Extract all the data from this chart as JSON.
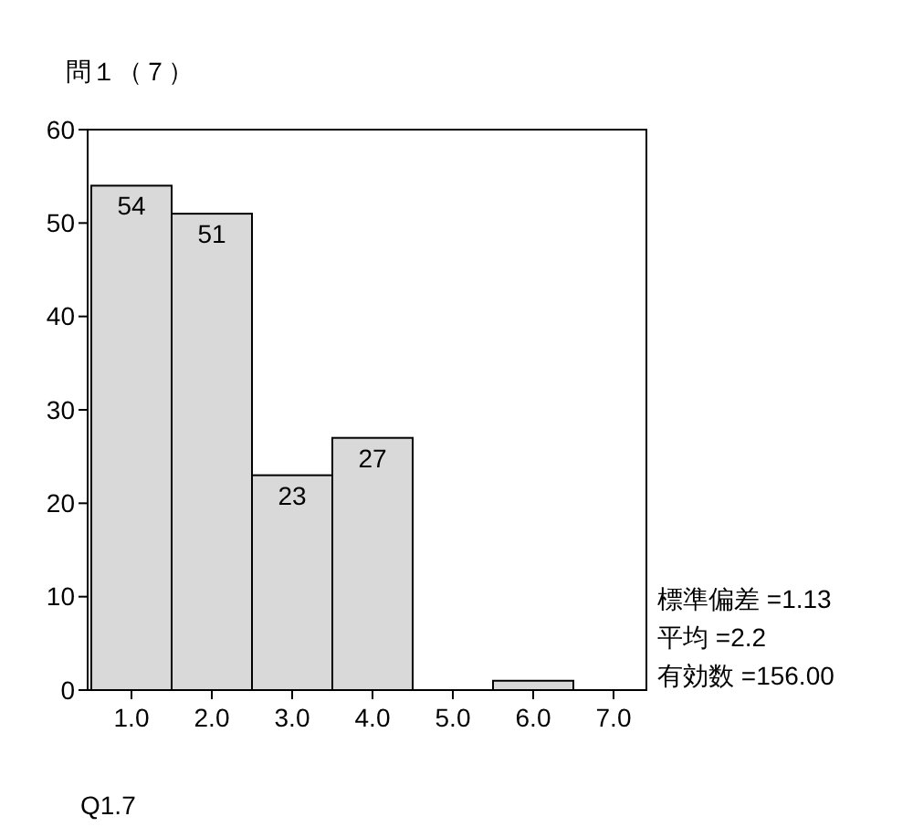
{
  "chart_data": {
    "type": "bar",
    "title": "問１（７）",
    "xlabel": "Q1.7",
    "categories": [
      "1.0",
      "2.0",
      "3.0",
      "4.0",
      "5.0",
      "6.0",
      "7.0"
    ],
    "values": [
      54,
      51,
      23,
      27,
      0,
      1,
      0
    ],
    "value_labels": [
      "54",
      "51",
      "23",
      "27",
      null,
      null,
      null
    ],
    "color": "#d9d9d9",
    "ylim": [
      0,
      60
    ],
    "yticks": [
      0,
      10,
      20,
      30,
      40,
      50,
      60
    ],
    "grid": false,
    "annotations": [
      "標準偏差 =1.13",
      "平均 =2.2",
      "有効数 =156.00"
    ]
  }
}
